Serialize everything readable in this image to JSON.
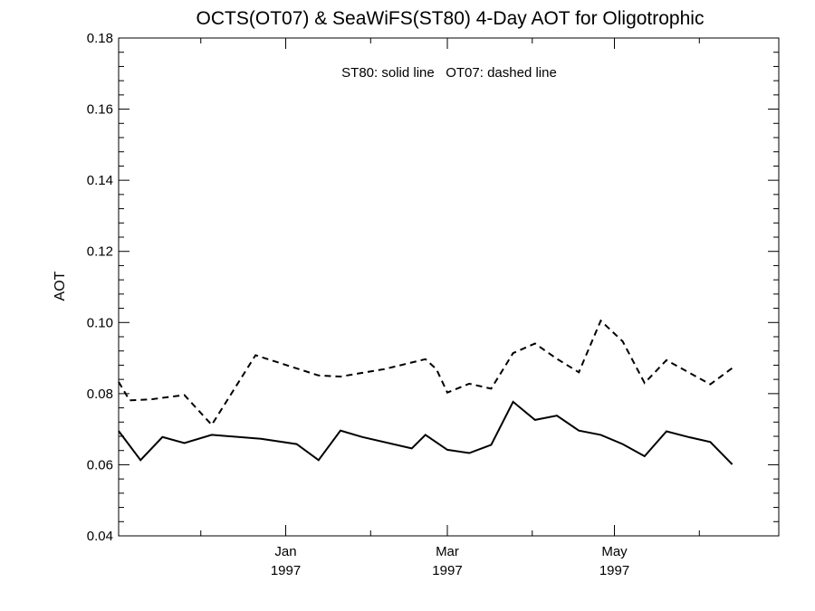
{
  "chart_data": {
    "type": "line",
    "title": "OCTS(OT07) & SeaWiFS(ST80) 4-Day AOT for Oligotrophic",
    "annotation": "ST80: solid line   OT07: dashed line",
    "xlabel": "",
    "ylabel": "AOT",
    "xlim": [
      "1996-11-01",
      "1997-06-30"
    ],
    "ylim": [
      0.04,
      0.18
    ],
    "y_ticks": [
      "0.04",
      "0.06",
      "0.08",
      "0.10",
      "0.12",
      "0.14",
      "0.16",
      "0.18"
    ],
    "x_ticks": [
      {
        "date": "1997-01-01",
        "month": "Jan",
        "year": "1997"
      },
      {
        "date": "1997-03-01",
        "month": "Mar",
        "year": "1997"
      },
      {
        "date": "1997-05-01",
        "month": "May",
        "year": "1997"
      }
    ],
    "x_minor_ticks": [
      "1996-12-01",
      "1997-02-01",
      "1997-04-01",
      "1997-06-01"
    ],
    "grid": false,
    "series": [
      {
        "name": "ST80",
        "style": "solid",
        "color": "#000000",
        "points": [
          {
            "x": "1996-11-01",
            "y": 0.0695
          },
          {
            "x": "1996-11-09",
            "y": 0.0613
          },
          {
            "x": "1996-11-17",
            "y": 0.0678
          },
          {
            "x": "1996-11-25",
            "y": 0.0661
          },
          {
            "x": "1996-12-05",
            "y": 0.0684
          },
          {
            "x": "1996-12-23",
            "y": 0.0673
          },
          {
            "x": "1997-01-05",
            "y": 0.0658
          },
          {
            "x": "1997-01-13",
            "y": 0.0613
          },
          {
            "x": "1997-01-21",
            "y": 0.0696
          },
          {
            "x": "1997-01-29",
            "y": 0.0678
          },
          {
            "x": "1997-02-16",
            "y": 0.0646
          },
          {
            "x": "1997-02-21",
            "y": 0.0684
          },
          {
            "x": "1997-03-01",
            "y": 0.0642
          },
          {
            "x": "1997-03-09",
            "y": 0.0633
          },
          {
            "x": "1997-03-17",
            "y": 0.0656
          },
          {
            "x": "1997-03-25",
            "y": 0.0777
          },
          {
            "x": "1997-04-02",
            "y": 0.0726
          },
          {
            "x": "1997-04-10",
            "y": 0.0738
          },
          {
            "x": "1997-04-18",
            "y": 0.0696
          },
          {
            "x": "1997-04-26",
            "y": 0.0684
          },
          {
            "x": "1997-05-04",
            "y": 0.0658
          },
          {
            "x": "1997-05-12",
            "y": 0.0624
          },
          {
            "x": "1997-05-20",
            "y": 0.0694
          },
          {
            "x": "1997-05-28",
            "y": 0.0678
          },
          {
            "x": "1997-06-05",
            "y": 0.0664
          },
          {
            "x": "1997-06-13",
            "y": 0.0601
          }
        ]
      },
      {
        "name": "OT07",
        "style": "dashed",
        "color": "#000000",
        "points": [
          {
            "x": "1996-11-01",
            "y": 0.0833
          },
          {
            "x": "1996-11-05",
            "y": 0.0781
          },
          {
            "x": "1996-11-13",
            "y": 0.0784
          },
          {
            "x": "1996-11-25",
            "y": 0.0796
          },
          {
            "x": "1996-12-05",
            "y": 0.0712
          },
          {
            "x": "1996-12-21",
            "y": 0.0908
          },
          {
            "x": "1997-01-13",
            "y": 0.0851
          },
          {
            "x": "1997-01-21",
            "y": 0.0848
          },
          {
            "x": "1997-02-06",
            "y": 0.0869
          },
          {
            "x": "1997-02-21",
            "y": 0.0897
          },
          {
            "x": "1997-02-25",
            "y": 0.0869
          },
          {
            "x": "1997-03-01",
            "y": 0.0803
          },
          {
            "x": "1997-03-09",
            "y": 0.0828
          },
          {
            "x": "1997-03-17",
            "y": 0.0814
          },
          {
            "x": "1997-03-25",
            "y": 0.0914
          },
          {
            "x": "1997-04-02",
            "y": 0.0941
          },
          {
            "x": "1997-04-10",
            "y": 0.0898
          },
          {
            "x": "1997-04-18",
            "y": 0.086
          },
          {
            "x": "1997-04-26",
            "y": 0.1005
          },
          {
            "x": "1997-05-04",
            "y": 0.0947
          },
          {
            "x": "1997-05-12",
            "y": 0.083
          },
          {
            "x": "1997-05-20",
            "y": 0.0894
          },
          {
            "x": "1997-06-05",
            "y": 0.0826
          },
          {
            "x": "1997-06-13",
            "y": 0.0872
          }
        ]
      }
    ]
  }
}
